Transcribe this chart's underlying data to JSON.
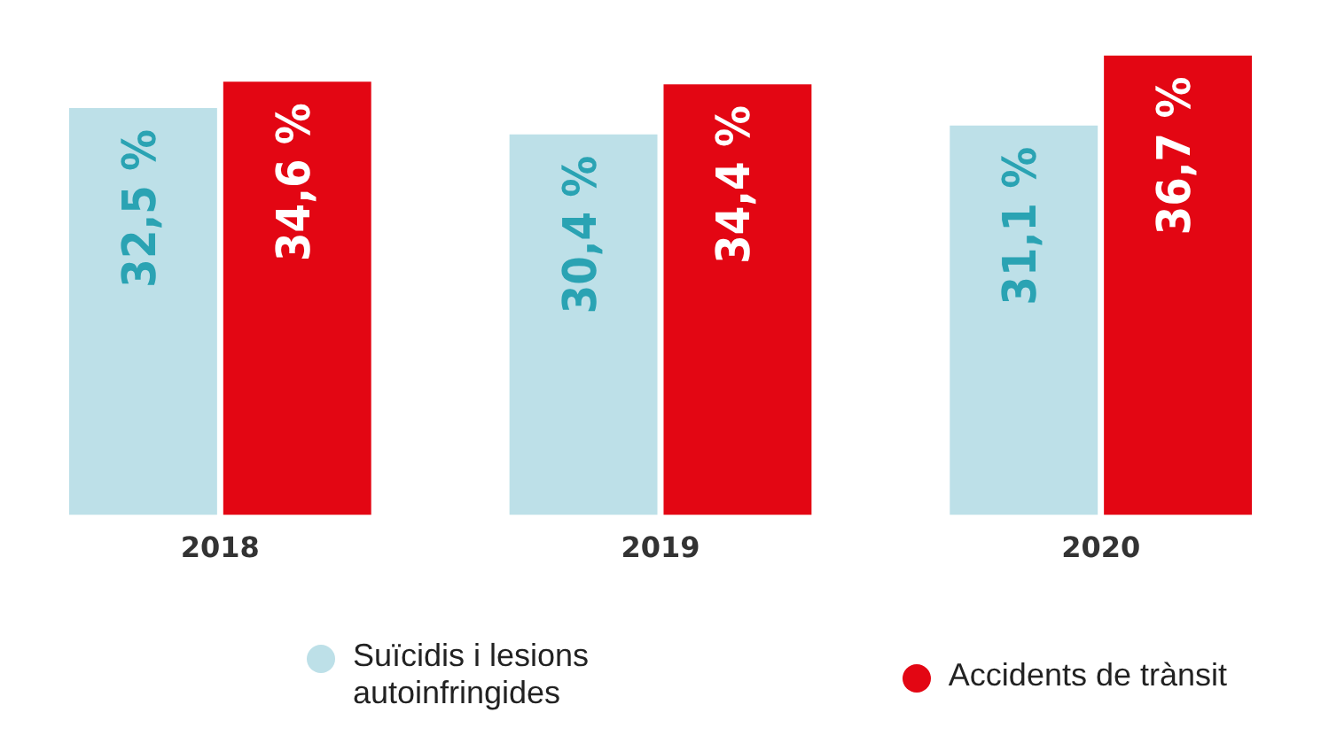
{
  "chart_data": {
    "type": "bar",
    "categories": [
      "2018",
      "2019",
      "2020"
    ],
    "series": [
      {
        "name": "Suïcidis i lesions autoinfringides",
        "color": "#bde0e8",
        "values": [
          32.5,
          30.4,
          31.1
        ],
        "value_labels": [
          "32,5 %",
          "30,4 %",
          "31,1 %"
        ]
      },
      {
        "name": "Accidents de trànsit",
        "color": "#e30613",
        "values": [
          34.6,
          34.4,
          36.7
        ],
        "value_labels": [
          "34,6 %",
          "34,4 %",
          "36,7 %"
        ]
      }
    ],
    "tick_labels": "x",
    "grid": false,
    "legend": "bottom"
  }
}
